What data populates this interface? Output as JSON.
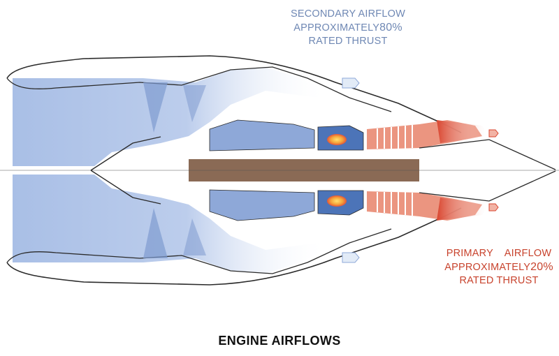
{
  "diagram": {
    "title": "ENGINE AIRFLOWS",
    "secondary_airflow": {
      "line1": "SECONDARY AIRFLOW",
      "line2_prefix": "APPROXIMATELY",
      "line2_value": "80%",
      "line3": "RATED THRUST",
      "color": "#6f88b4"
    },
    "primary_airflow": {
      "line1": "PRIMARY    AIRFLOW",
      "line2_prefix": "APPROXIMATELY",
      "line2_value": "20%",
      "line3": "RATED THRUST",
      "color": "#c8432d"
    },
    "colors": {
      "bypass_air": "#aac0e6",
      "core_flow": "#4c74b8",
      "hot_gas": "#e2553a",
      "shaft": "#8a6a55",
      "outline": "#2a2a2a"
    }
  }
}
